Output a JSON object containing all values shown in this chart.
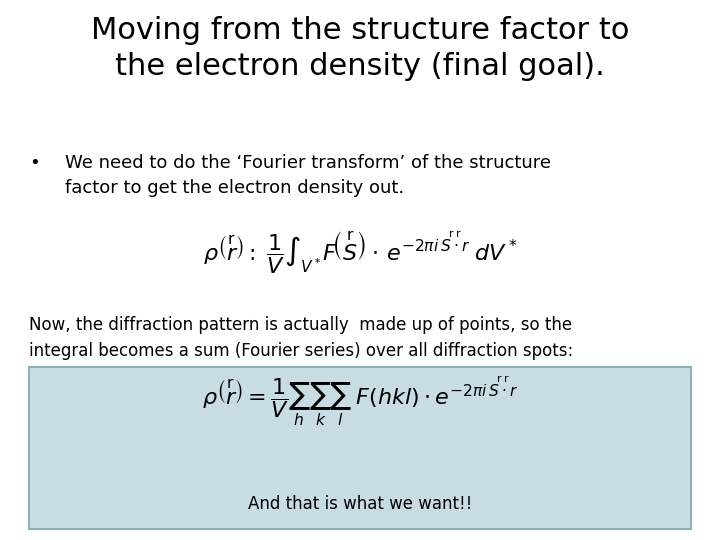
{
  "title_line1": "Moving from the structure factor to",
  "title_line2": "the electron density (final goal).",
  "bullet_text": "We need to do the ‘Fourier transform’ of the structure\nfactor to get the electron density out.",
  "text_below_formula1": "Now, the diffraction pattern is actually  made up of points, so the\nintegral becomes a sum (Fourier series) over all diffraction spots:",
  "caption": "And that is what we want!!",
  "bg_color": "#ffffff",
  "box_color": "#c8dde3",
  "title_fontsize": 22,
  "bullet_fontsize": 13,
  "text_fontsize": 12,
  "caption_fontsize": 12
}
